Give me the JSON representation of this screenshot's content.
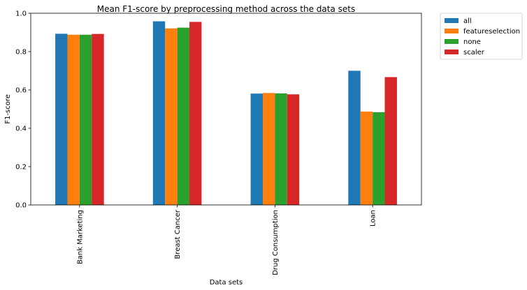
{
  "chart_data": {
    "type": "bar",
    "title": "Mean F1-score by preprocessing method across the data sets",
    "xlabel": "Data sets",
    "ylabel": "F1-score",
    "categories": [
      "Bank Marketing",
      "Breast Cancer",
      "Drug Consumption",
      "Loan"
    ],
    "series": [
      {
        "name": "all",
        "color": "#1f77b4",
        "values": [
          0.893,
          0.958,
          0.581,
          0.7
        ]
      },
      {
        "name": "featureselection",
        "color": "#ff7f0e",
        "values": [
          0.888,
          0.921,
          0.584,
          0.487
        ]
      },
      {
        "name": "none",
        "color": "#2ca02c",
        "values": [
          0.888,
          0.925,
          0.582,
          0.484
        ]
      },
      {
        "name": "scaler",
        "color": "#d62728",
        "values": [
          0.892,
          0.955,
          0.577,
          0.667
        ]
      }
    ],
    "ylim": [
      0,
      1.0
    ],
    "yticks": [
      0.0,
      0.2,
      0.4,
      0.6,
      0.8,
      1.0
    ],
    "ytick_labels": [
      "0.0",
      "0.2",
      "0.4",
      "0.6",
      "0.8",
      "1.0"
    ],
    "grid": false,
    "legend_placement": "outside-top-right"
  }
}
